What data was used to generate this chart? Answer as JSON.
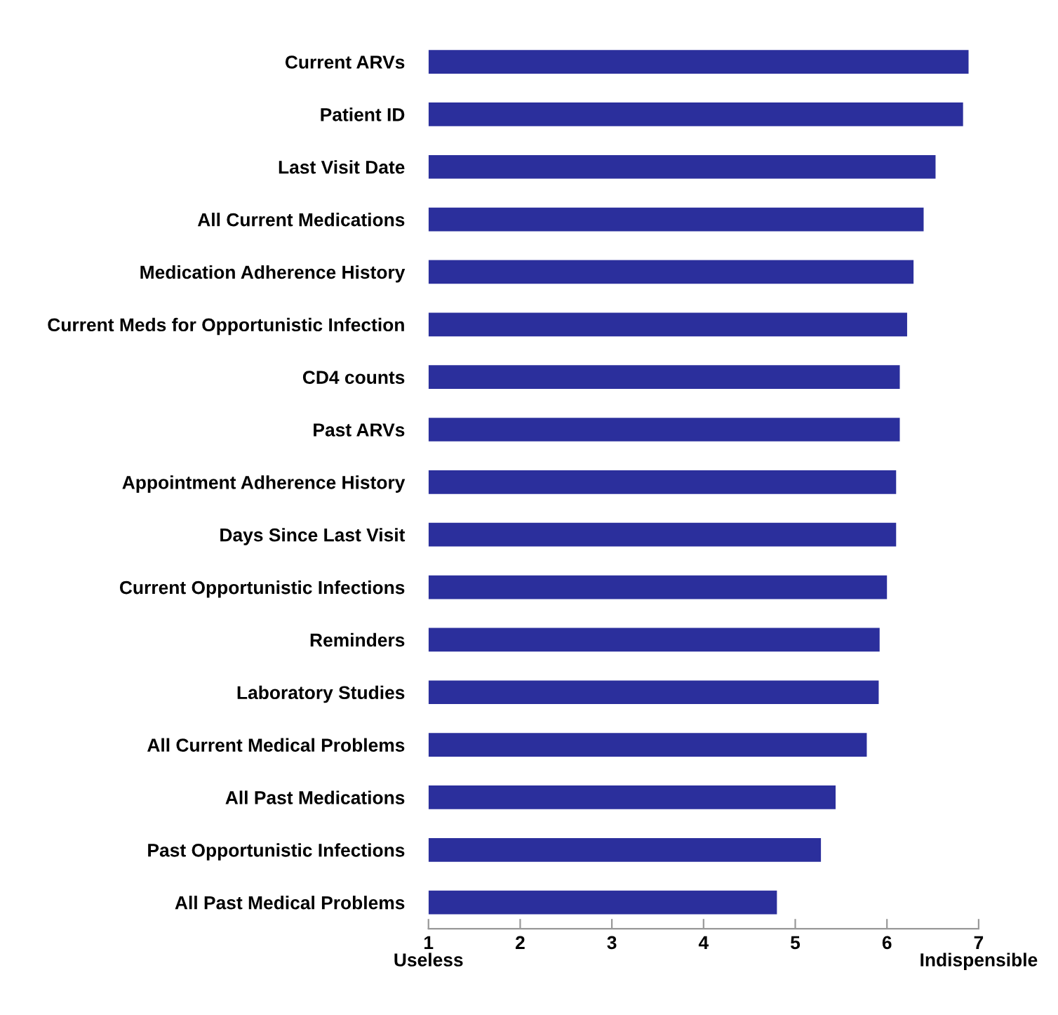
{
  "chart_data": {
    "type": "bar",
    "orientation": "horizontal",
    "base": [
      1,
      1,
      1,
      1,
      1,
      1,
      1,
      1,
      1,
      1,
      1,
      1,
      1,
      1,
      1,
      1,
      1
    ],
    "categories": [
      "Current ARVs",
      "Patient ID",
      "Last Visit Date",
      "All Current Medications",
      "Medication Adherence History",
      "Current Meds for Opportunistic Infection",
      "CD4 counts",
      "Past ARVs",
      "Appointment Adherence History",
      "Days Since Last Visit",
      "Current Opportunistic Infections",
      "Reminders",
      "Laboratory Studies",
      "All Current Medical Problems",
      "All Past Medications",
      "Past Opportunistic Infections",
      "All Past Medical Problems"
    ],
    "values": [
      5.89,
      5.83,
      5.53,
      5.4,
      5.29,
      5.22,
      5.14,
      5.14,
      5.1,
      5.1,
      5.0,
      4.92,
      4.91,
      4.78,
      4.44,
      4.28,
      3.8
    ],
    "color": "#2b2f9c",
    "xlim": [
      1,
      7
    ],
    "xticks": [
      {
        "value": 1,
        "label": "1\nUseless"
      },
      2,
      3,
      4,
      5,
      6,
      {
        "value": 7,
        "label": "7\nIndispensible"
      }
    ],
    "grid": false
  }
}
